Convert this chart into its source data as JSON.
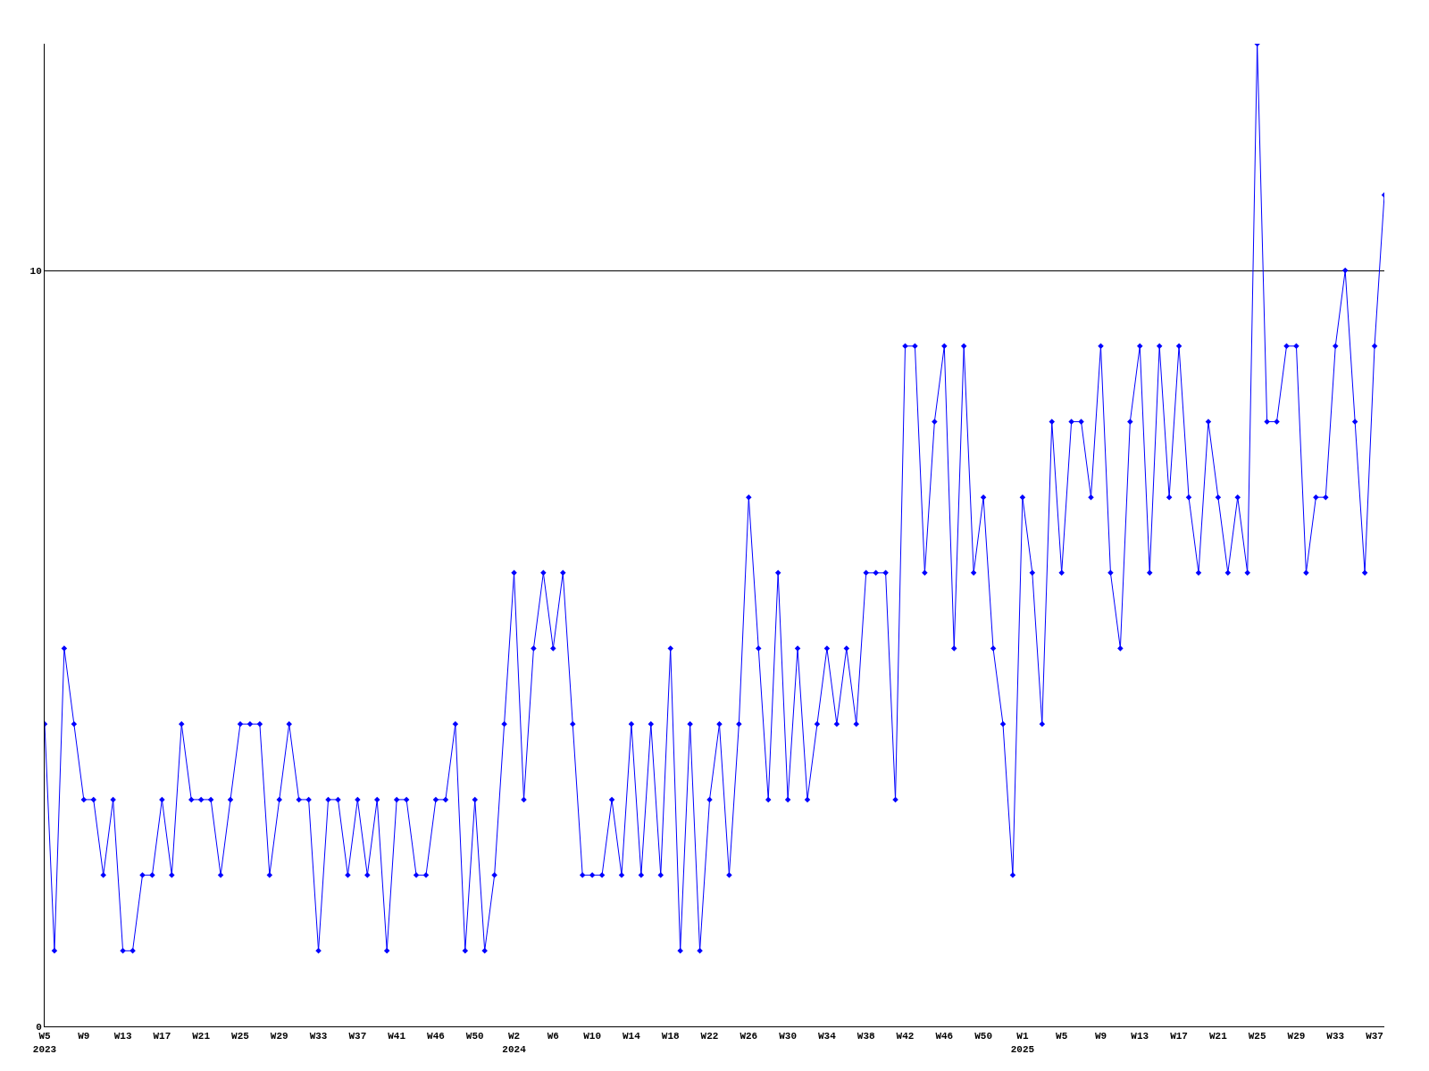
{
  "chart_data": {
    "type": "line",
    "color": "#0000ff",
    "marker": "diamond",
    "grid": "y",
    "ylim": [
      0,
      13
    ],
    "yticks": [
      0,
      10
    ],
    "categories": [
      "W5\n2023",
      null,
      null,
      null,
      "W9",
      null,
      null,
      null,
      "W13",
      null,
      null,
      null,
      "W17",
      null,
      null,
      null,
      "W21",
      null,
      null,
      null,
      "W25",
      null,
      null,
      null,
      "W29",
      null,
      null,
      null,
      "W33",
      null,
      null,
      null,
      "W37",
      null,
      null,
      null,
      "W41",
      null,
      null,
      null,
      "W46",
      null,
      null,
      null,
      "W50",
      null,
      null,
      null,
      "W2\n2024",
      null,
      null,
      null,
      "W6",
      null,
      null,
      null,
      "W10",
      null,
      null,
      null,
      "W14",
      null,
      null,
      null,
      "W18",
      null,
      null,
      null,
      "W22",
      null,
      null,
      null,
      "W26",
      null,
      null,
      null,
      "W30",
      null,
      null,
      null,
      "W34",
      null,
      null,
      null,
      "W38",
      null,
      null,
      null,
      "W42",
      null,
      null,
      null,
      "W46",
      null,
      null,
      null,
      "W50",
      null,
      null,
      null,
      "W1\n2025",
      null,
      null,
      null,
      "W5",
      null,
      null,
      null,
      "W9",
      null,
      null,
      null,
      "W13",
      null,
      null,
      null,
      "W17",
      null,
      null,
      null,
      "W21",
      null,
      null,
      null,
      "W25",
      null,
      null,
      null,
      "W29",
      null,
      null,
      null,
      "W33",
      null,
      null,
      null,
      "W37",
      null
    ],
    "values": [
      4,
      1,
      5,
      4,
      3,
      3,
      2,
      3,
      1,
      1,
      2,
      2,
      3,
      2,
      4,
      3,
      3,
      3,
      2,
      3,
      4,
      4,
      4,
      2,
      3,
      4,
      3,
      3,
      1,
      3,
      3,
      2,
      3,
      2,
      3,
      1,
      3,
      3,
      2,
      2,
      3,
      3,
      4,
      1,
      3,
      1,
      2,
      4,
      6,
      3,
      5,
      6,
      5,
      6,
      4,
      2,
      2,
      2,
      3,
      2,
      4,
      2,
      4,
      2,
      5,
      1,
      4,
      1,
      3,
      4,
      2,
      4,
      7,
      5,
      3,
      6,
      3,
      5,
      3,
      4,
      5,
      4,
      5,
      4,
      6,
      6,
      6,
      3,
      9,
      9,
      6,
      8,
      9,
      5,
      9,
      6,
      7,
      5,
      4,
      2,
      7,
      6,
      4,
      8,
      6,
      8,
      8,
      7,
      9,
      6,
      5,
      8,
      9,
      6,
      9,
      7,
      9,
      7,
      6,
      8,
      7,
      6,
      7,
      6,
      13,
      8,
      8,
      9,
      9,
      6,
      7,
      7,
      9,
      10,
      8,
      6,
      9,
      11
    ]
  }
}
